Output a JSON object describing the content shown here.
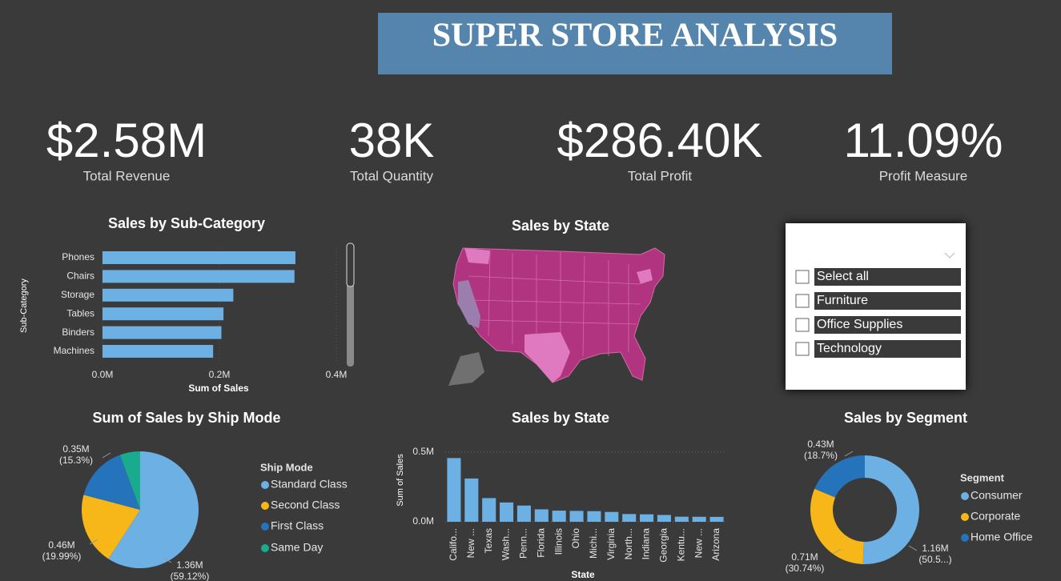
{
  "header": {
    "title": "SUPER STORE ANALYSIS"
  },
  "kpis": [
    {
      "value": "$2.58M",
      "label": "Total Revenue"
    },
    {
      "value": "38K",
      "label": "Total Quantity"
    },
    {
      "value": "$286.40K",
      "label": "Total Profit"
    },
    {
      "value": "11.09%",
      "label": "Profit Measure"
    }
  ],
  "slicer": {
    "items": [
      "Select all",
      "Furniture",
      "Office Supplies",
      "Technology"
    ]
  },
  "chart_data": [
    {
      "type": "hbar",
      "title": "Sales by Sub-Category",
      "x_label": "Sum of Sales",
      "y_label": "Sub-Category",
      "color": "#6cb0e4",
      "categories": [
        "Phones",
        "Chairs",
        "Storage",
        "Tables",
        "Binders",
        "Machines"
      ],
      "values": [
        330007,
        328449,
        223844,
        206966,
        203413,
        189239
      ],
      "xlim": [
        0,
        400000
      ],
      "xticks": [
        {
          "value": 0,
          "label": "0.0M"
        },
        {
          "value": 200000,
          "label": "0.2M"
        },
        {
          "value": 400000,
          "label": "0.4M"
        }
      ]
    },
    {
      "type": "map",
      "title": "Sales by State"
    },
    {
      "type": "pie",
      "title": "Sum of Sales by Ship Mode",
      "legend_title": "Ship Mode",
      "categories": [
        "Standard Class",
        "Second Class",
        "First Class",
        "Same Day"
      ],
      "colors": [
        "#6cb0e4",
        "#f7b718",
        "#2473bb",
        "#1aab8e"
      ],
      "values": [
        1358216,
        459194,
        351428,
        128363
      ],
      "value_labels": [
        "1.36M",
        "0.46M",
        "0.35M",
        null
      ],
      "percents": [
        59.12,
        19.99,
        15.3,
        5.59
      ],
      "percent_labels": [
        "(59.12%)",
        "(19.99%)",
        "(15.3%)",
        null
      ]
    },
    {
      "type": "bar",
      "title": "Sales by State",
      "x_label": "State",
      "y_label": "Sum of Sales",
      "color": "#6cb0e4",
      "categories": [
        "Califo...",
        "New ...",
        "Texas",
        "Wash...",
        "Penn...",
        "Florida",
        "Illinois",
        "Ohio",
        "Michi...",
        "Virginia",
        "North...",
        "Indiana",
        "Georgia",
        "Kentu...",
        "New ...",
        "Arizona"
      ],
      "values": [
        457688,
        310876,
        170188,
        138641,
        116512,
        89474,
        80166,
        78258,
        76270,
        70637,
        55603,
        53555,
        49096,
        36592,
        35764,
        35282
      ],
      "ylim": [
        0,
        500000
      ],
      "yticks": [
        {
          "value": 0,
          "label": "0.0M"
        },
        {
          "value": 500000,
          "label": "0.5M"
        }
      ],
      "grid": true
    },
    {
      "type": "donut",
      "title": "Sales by Segment",
      "legend_title": "Segment",
      "categories": [
        "Consumer",
        "Corporate",
        "Home Office"
      ],
      "colors": [
        "#6cb0e4",
        "#f7b718",
        "#2473bb"
      ],
      "values": [
        1161401,
        706146,
        429653
      ],
      "value_labels": [
        "1.16M",
        "0.71M",
        "0.43M"
      ],
      "percents": [
        50.56,
        30.74,
        18.7
      ],
      "percent_labels": [
        "(50.5...)",
        "(30.74%)",
        "(18.7%)"
      ]
    }
  ]
}
